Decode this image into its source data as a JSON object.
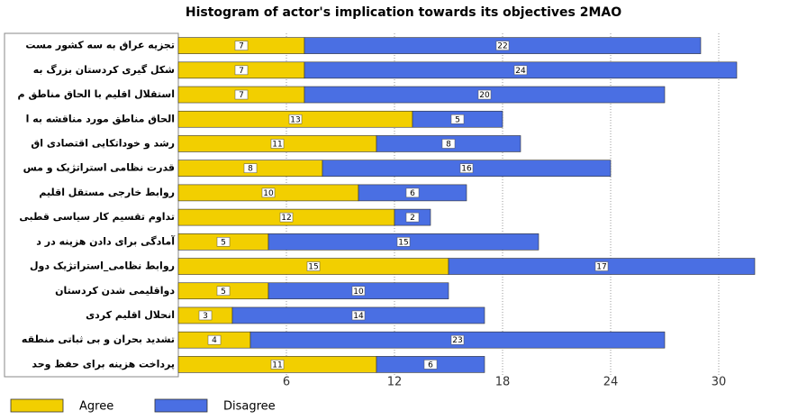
{
  "chart_data": {
    "type": "hbar_stacked",
    "title": "Histogram of actor's implication towards its objectives 2MAO",
    "categories": [
      "تجزیه عراق به سه کشور مست",
      "شکل گیری کردستان بزرگ به",
      "استقلال اقلیم با الحاق مناطق م",
      "الحاق مناطق مورد مناقشه به ا",
      "رشد و خوداتکایی اقتصادی اق",
      "قدرت نظامی استراتژیک و مس",
      "روابط خارجی مستقل اقلیم",
      "تداوم تقسیم کار سیاسی قطبی",
      "آمادگی برای دادن هزینه در د",
      "روابط نظامی_استراتژیک دول",
      "دواقلیمی شدن کردستان",
      "انحلال اقلیم کردی",
      "تشدید بحران و بی ثباتی منطقه",
      "پرداخت هزینه برای حفظ وحد"
    ],
    "series": [
      {
        "name": "Agree",
        "color": "#f2cf00",
        "values": [
          7,
          7,
          7,
          13,
          11,
          8,
          10,
          12,
          5,
          15,
          5,
          3,
          4,
          11
        ]
      },
      {
        "name": "Disagree",
        "color": "#4a6fe3",
        "values": [
          22,
          24,
          20,
          5,
          8,
          16,
          6,
          2,
          15,
          17,
          10,
          14,
          23,
          6
        ]
      }
    ],
    "xlim": [
      0,
      33
    ],
    "xticks": [
      6,
      12,
      18,
      24,
      30
    ],
    "grid": true,
    "legend": "bottom-left"
  }
}
